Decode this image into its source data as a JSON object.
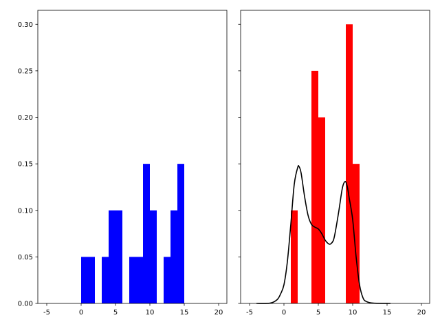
{
  "chart_data": [
    {
      "type": "bar",
      "xlim": [
        -6.3,
        21.2
      ],
      "ylim": [
        0,
        0.315
      ],
      "xticks": [
        "-5",
        "0",
        "5",
        "10",
        "15",
        "20"
      ],
      "xtick_values": [
        -5,
        0,
        5,
        10,
        15,
        20
      ],
      "yticks": [
        "0.00",
        "0.05",
        "0.10",
        "0.15",
        "0.20",
        "0.25",
        "0.30"
      ],
      "ytick_values": [
        0,
        0.05,
        0.1,
        0.15,
        0.2,
        0.25,
        0.3
      ],
      "grid": false,
      "color": "#0000ff",
      "bins": [
        {
          "x0": 0,
          "x1": 1,
          "value": 0.05
        },
        {
          "x0": 1,
          "x1": 2,
          "value": 0.05
        },
        {
          "x0": 3,
          "x1": 4,
          "value": 0.05
        },
        {
          "x0": 4,
          "x1": 5,
          "value": 0.1
        },
        {
          "x0": 5,
          "x1": 6,
          "value": 0.1
        },
        {
          "x0": 7,
          "x1": 8,
          "value": 0.05
        },
        {
          "x0": 8,
          "x1": 9,
          "value": 0.05
        },
        {
          "x0": 9,
          "x1": 10,
          "value": 0.15
        },
        {
          "x0": 10,
          "x1": 11,
          "value": 0.1
        },
        {
          "x0": 12,
          "x1": 13,
          "value": 0.05
        },
        {
          "x0": 13,
          "x1": 14,
          "value": 0.1
        },
        {
          "x0": 14,
          "x1": 15,
          "value": 0.15
        }
      ]
    },
    {
      "type": "bar",
      "xlim": [
        -6.3,
        21.2
      ],
      "ylim": [
        0,
        0.315
      ],
      "xticks": [
        "-5",
        "0",
        "5",
        "10",
        "15",
        "20"
      ],
      "xtick_values": [
        -5,
        0,
        5,
        10,
        15,
        20
      ],
      "ytick_values": [
        0,
        0.05,
        0.1,
        0.15,
        0.2,
        0.25,
        0.3
      ],
      "shared_y": true,
      "grid": false,
      "color": "#ff0000",
      "bins": [
        {
          "x0": 1,
          "x1": 2,
          "value": 0.1
        },
        {
          "x0": 4,
          "x1": 5,
          "value": 0.25
        },
        {
          "x0": 5,
          "x1": 6,
          "value": 0.2
        },
        {
          "x0": 9,
          "x1": 10,
          "value": 0.3
        },
        {
          "x0": 10,
          "x1": 11,
          "value": 0.15
        }
      ],
      "line": {
        "type": "line",
        "color": "#000000",
        "x": [
          -4,
          -2,
          -1,
          -0.5,
          0,
          0.5,
          1,
          1.5,
          2,
          2.2,
          2.5,
          3,
          3.5,
          4,
          4.5,
          5,
          5.5,
          6,
          6.5,
          6.8,
          7.2,
          7.5,
          8,
          8.5,
          8.9,
          9.2,
          9.5,
          10,
          10.5,
          11,
          11.5,
          12,
          13,
          15.5
        ],
        "y": [
          0,
          0.0003,
          0.004,
          0.01,
          0.02,
          0.045,
          0.085,
          0.128,
          0.146,
          0.147,
          0.14,
          0.115,
          0.095,
          0.085,
          0.082,
          0.08,
          0.075,
          0.068,
          0.064,
          0.064,
          0.068,
          0.078,
          0.1,
          0.124,
          0.131,
          0.126,
          0.113,
          0.09,
          0.05,
          0.02,
          0.006,
          0.002,
          0.0003,
          0
        ]
      }
    }
  ]
}
